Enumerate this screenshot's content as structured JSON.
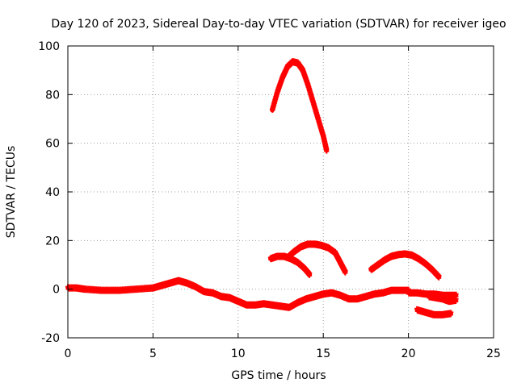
{
  "chart_data": {
    "type": "scatter",
    "title": "Day 120 of 2023, Sidereal Day-to-day VTEC variation (SDTVAR) for receiver igeo",
    "xlabel": "GPS time / hours",
    "ylabel": "SDTVAR / TECUs",
    "xlim": [
      0,
      25
    ],
    "ylim": [
      -20,
      100
    ],
    "xticks": [
      0,
      5,
      10,
      15,
      20,
      25
    ],
    "yticks": [
      -20,
      0,
      20,
      40,
      60,
      80,
      100
    ],
    "grid": true,
    "series_color": "#ff0000",
    "series": [
      {
        "name": "baseline",
        "x": [
          0,
          0.5,
          1,
          2,
          3,
          4,
          5,
          5.5,
          6,
          6.5,
          7,
          7.5,
          8,
          8.5,
          9,
          9.5,
          10,
          10.5,
          11,
          11.5,
          12,
          12.5,
          13,
          13.5,
          14,
          14.5,
          15,
          15.5,
          16,
          16.5,
          17,
          17.5,
          18,
          18.5,
          19,
          19.5,
          20
        ],
        "y": [
          0.5,
          0.5,
          0,
          -0.5,
          -0.5,
          0,
          0.5,
          1.5,
          2.5,
          3.5,
          2.5,
          1,
          -1,
          -1.5,
          -3,
          -3.5,
          -5,
          -6.5,
          -6.5,
          -6,
          -6.5,
          -7,
          -7.5,
          -5.5,
          -4,
          -3,
          -2,
          -1.5,
          -2.5,
          -4,
          -4,
          -3,
          -2,
          -1.5,
          -0.5,
          -0.5,
          -0.5
        ]
      },
      {
        "name": "tail-upper",
        "x": [
          20,
          20.5,
          21,
          21.5,
          22,
          22.5,
          22.8
        ],
        "y": [
          -1.5,
          -1.5,
          -2,
          -2,
          -2.5,
          -2.5,
          -2.5
        ]
      },
      {
        "name": "tail-mid",
        "x": [
          21.2,
          21.6,
          22,
          22.4,
          22.8
        ],
        "y": [
          -3,
          -3.5,
          -4,
          -5,
          -4.5
        ]
      },
      {
        "name": "tail-lower",
        "x": [
          20.5,
          21,
          21.5,
          22,
          22.5
        ],
        "y": [
          -8.5,
          -9.5,
          -10.5,
          -10.5,
          -10
        ]
      },
      {
        "name": "arc-high",
        "x": [
          12,
          12.3,
          12.6,
          12.9,
          13.2,
          13.5,
          13.8,
          14.1,
          14.4,
          14.7,
          15,
          15.2
        ],
        "y": [
          73.5,
          81,
          87,
          91.5,
          93.5,
          93,
          90,
          84,
          77,
          70,
          63,
          57
        ]
      },
      {
        "name": "arc-left",
        "x": [
          11.9,
          12.3,
          12.7,
          13.1,
          13.5,
          13.9,
          14.2
        ],
        "y": [
          12.5,
          13.5,
          13.5,
          12.5,
          11,
          8.5,
          6
        ]
      },
      {
        "name": "arc-mid",
        "x": [
          12.9,
          13.3,
          13.7,
          14.1,
          14.5,
          14.9,
          15.3,
          15.7,
          16,
          16.3
        ],
        "y": [
          13,
          15.5,
          17.5,
          18.5,
          18.5,
          18,
          17,
          15,
          11,
          7
        ]
      },
      {
        "name": "arc-right",
        "x": [
          17.8,
          18.2,
          18.6,
          19,
          19.4,
          19.8,
          20.2,
          20.6,
          21,
          21.4,
          21.8
        ],
        "y": [
          8,
          10,
          12,
          13.5,
          14.2,
          14.5,
          14,
          12.5,
          10.5,
          8,
          5
        ]
      }
    ]
  }
}
